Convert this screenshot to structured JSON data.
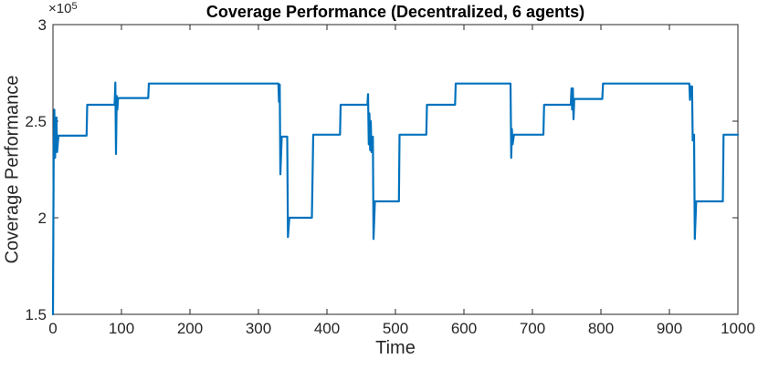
{
  "figure": {
    "background": "#ffffff",
    "title": "Coverage Performance (Decentralized, 6 agents)",
    "y_exponent_base": "×10",
    "y_exponent_power": "5"
  },
  "chart_data": {
    "type": "line",
    "title": "Coverage Performance (Decentralized, 6 agents)",
    "xlabel": "Time",
    "ylabel": "Coverage Performance",
    "xlim": [
      0,
      1000
    ],
    "ylim": [
      150000,
      300000
    ],
    "y_axis_exponent_label": "×10⁵",
    "x_ticks": [
      0,
      100,
      200,
      300,
      400,
      500,
      600,
      700,
      800,
      900,
      1000
    ],
    "x_tick_labels": [
      "0",
      "100",
      "200",
      "300",
      "400",
      "500",
      "600",
      "700",
      "800",
      "900",
      "1000"
    ],
    "y_ticks": [
      150000,
      200000,
      250000,
      300000
    ],
    "y_tick_labels": [
      "1.5",
      "2",
      "2.5",
      "3"
    ],
    "grid": false,
    "box": true,
    "tick_direction": "in",
    "legend": "none",
    "line_color": "#0072BD",
    "axes_color": "#262626",
    "title_color": "#000000",
    "series": [
      {
        "name": "coverage-performance",
        "points": [
          [
            0,
            150000
          ],
          [
            1,
            235000
          ],
          [
            2,
            256000
          ],
          [
            3,
            231000
          ],
          [
            5,
            252000
          ],
          [
            6,
            234000
          ],
          [
            8,
            242500
          ],
          [
            49,
            242500
          ],
          [
            50,
            258500
          ],
          [
            90,
            258500
          ],
          [
            91,
            270000
          ],
          [
            92,
            233000
          ],
          [
            93,
            263000
          ],
          [
            94,
            256000
          ],
          [
            95,
            262000
          ],
          [
            139,
            262000
          ],
          [
            140,
            269500
          ],
          [
            329,
            269500
          ],
          [
            330,
            260000
          ],
          [
            331,
            269000
          ],
          [
            332,
            222500
          ],
          [
            334,
            242000
          ],
          [
            342,
            242000
          ],
          [
            343,
            190000
          ],
          [
            345,
            200000
          ],
          [
            378,
            200000
          ],
          [
            380,
            243000
          ],
          [
            419,
            243000
          ],
          [
            420,
            258500
          ],
          [
            459,
            258500
          ],
          [
            460,
            264000
          ],
          [
            461,
            238000
          ],
          [
            462,
            254000
          ],
          [
            463,
            235000
          ],
          [
            464,
            250000
          ],
          [
            465,
            234000
          ],
          [
            467,
            242000
          ],
          [
            468,
            189000
          ],
          [
            470,
            208500
          ],
          [
            505,
            208500
          ],
          [
            506,
            243000
          ],
          [
            545,
            243000
          ],
          [
            546,
            258500
          ],
          [
            587,
            258500
          ],
          [
            588,
            269500
          ],
          [
            668,
            269500
          ],
          [
            669,
            231000
          ],
          [
            670,
            246000
          ],
          [
            671,
            238000
          ],
          [
            673,
            243000
          ],
          [
            716,
            243000
          ],
          [
            717,
            258500
          ],
          [
            756,
            258500
          ],
          [
            757,
            267000
          ],
          [
            758,
            256000
          ],
          [
            759,
            267000
          ],
          [
            760,
            251000
          ],
          [
            761,
            261500
          ],
          [
            802,
            261500
          ],
          [
            803,
            269500
          ],
          [
            929,
            269500
          ],
          [
            930,
            261000
          ],
          [
            931,
            268000
          ],
          [
            933,
            268000
          ],
          [
            934,
            240000
          ],
          [
            936,
            243000
          ],
          [
            937,
            189000
          ],
          [
            939,
            208500
          ],
          [
            978,
            208500
          ],
          [
            979,
            243000
          ],
          [
            1000,
            243000
          ]
        ]
      }
    ]
  }
}
